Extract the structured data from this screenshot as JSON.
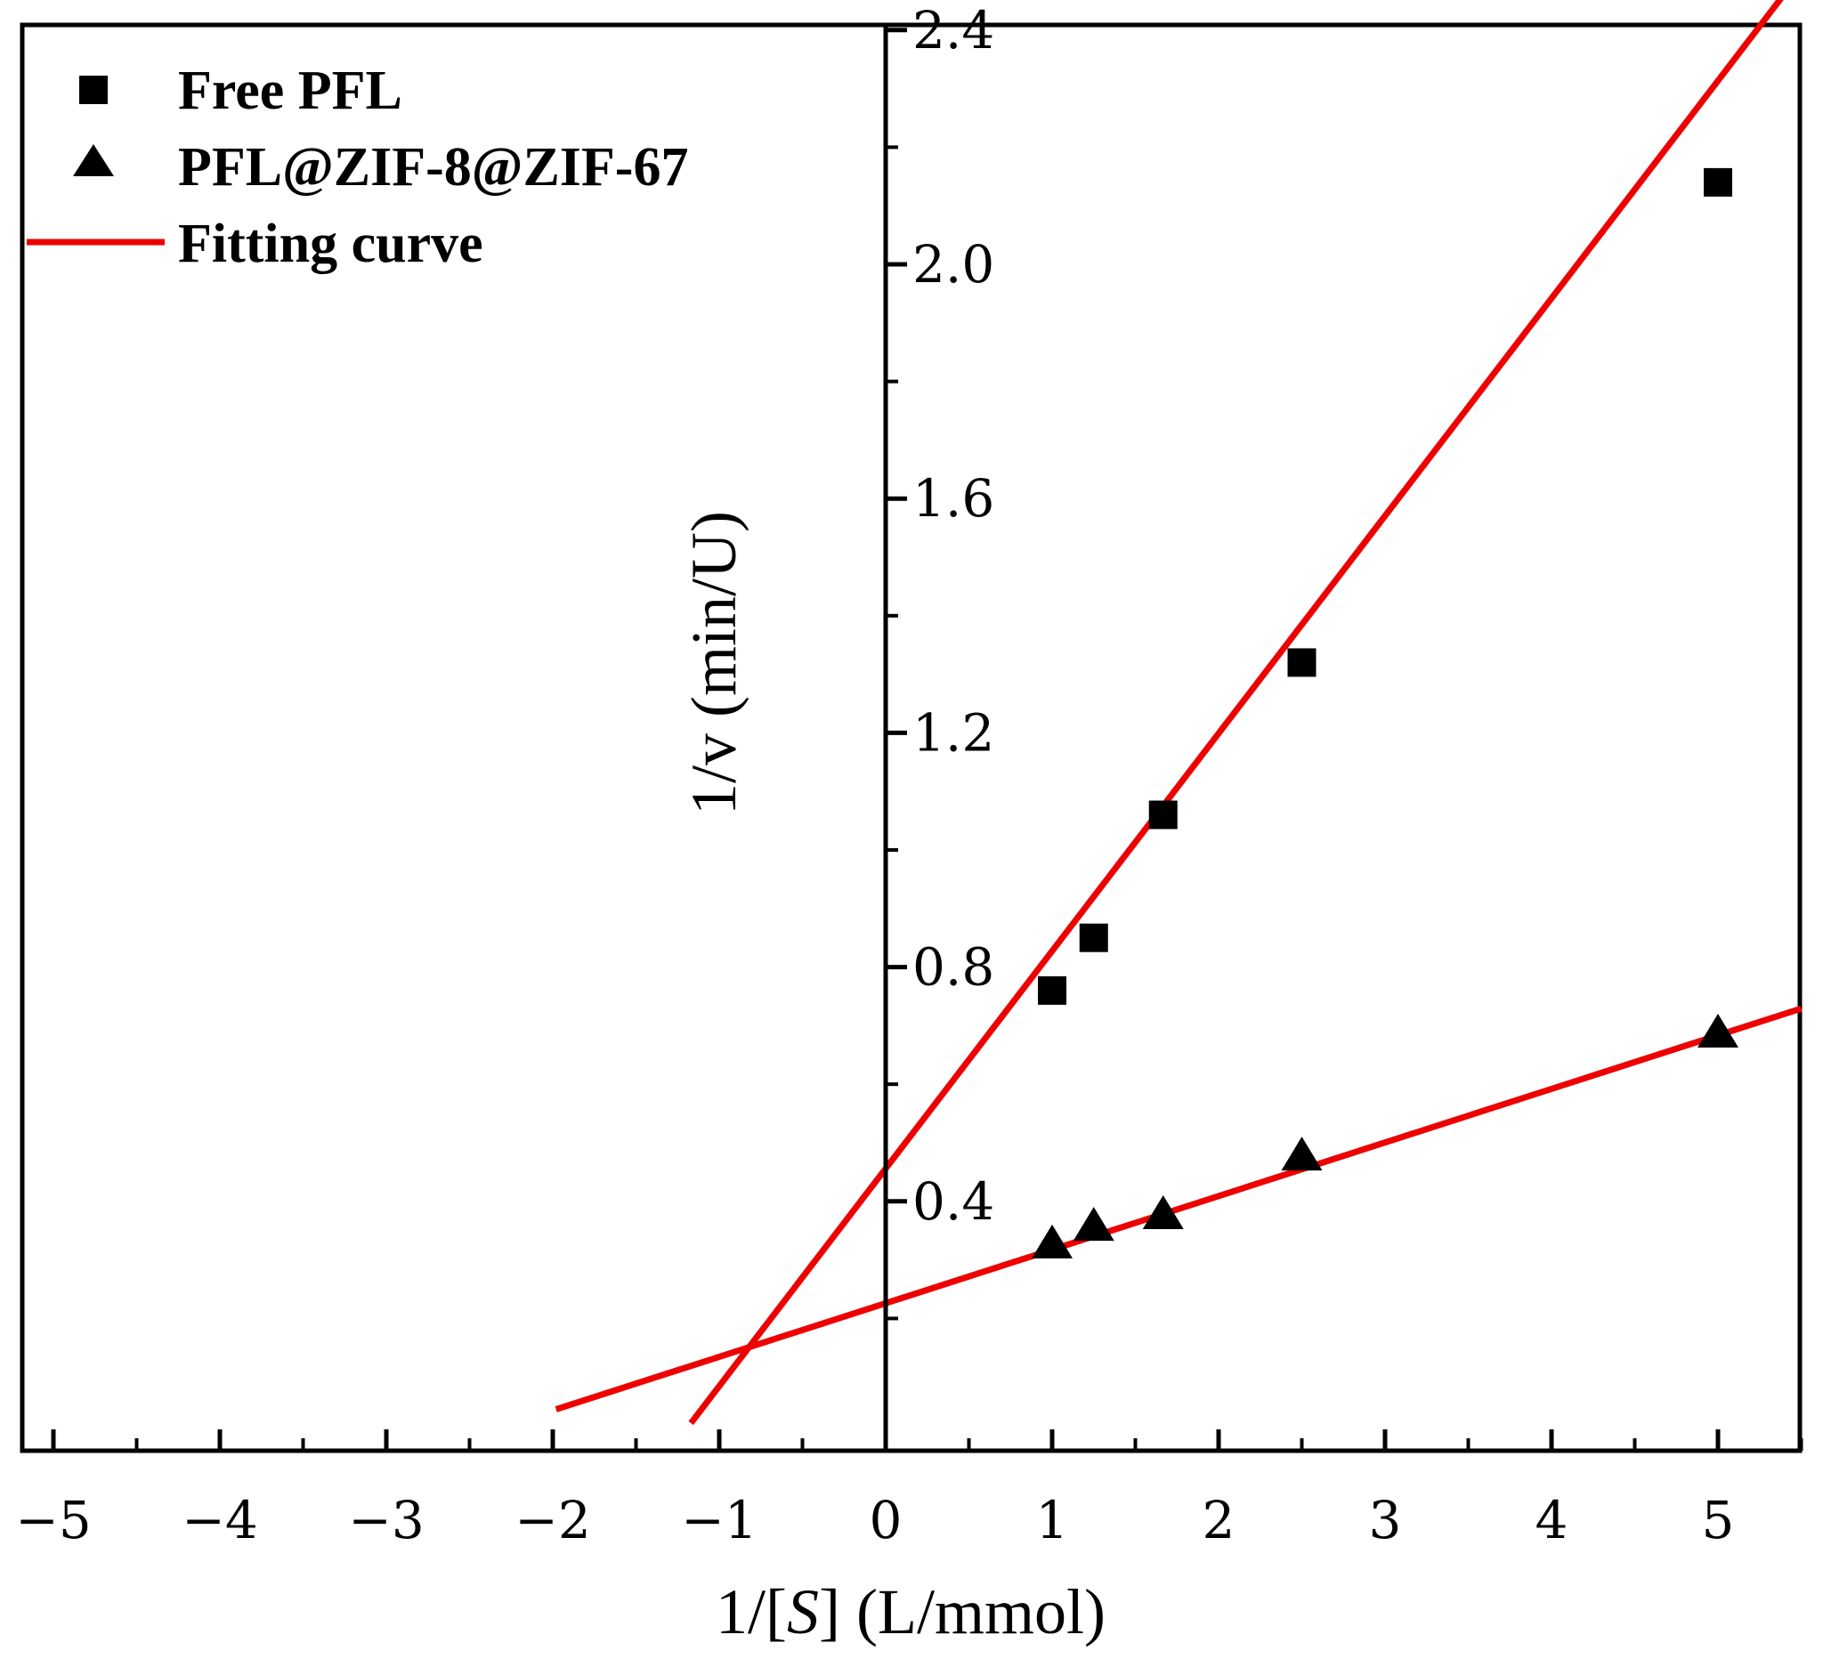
{
  "chart_data": {
    "type": "scatter",
    "title": "",
    "xlabel": {
      "prefix": "1/[",
      "italic": "S",
      "suffix": "] (L/mmol)"
    },
    "ylabel": "1/v (min/U)",
    "xlim": [
      -5.2,
      5.5
    ],
    "ylim": [
      0.05,
      2.5
    ],
    "x_ticks": [
      -5,
      -4,
      -3,
      -2,
      -1,
      0,
      1,
      2,
      3,
      4,
      5
    ],
    "x_tick_labels": [
      "−5",
      "−4",
      "−3",
      "−2",
      "−1",
      "0",
      "1",
      "2",
      "3",
      "4",
      "5"
    ],
    "y_ticks": [
      0.4,
      0.8,
      1.2,
      1.6,
      2.0,
      2.4
    ],
    "y_tick_labels": [
      "0.4",
      "0.8",
      "1.2",
      "1.6",
      "2.0",
      "2.4"
    ],
    "series": [
      {
        "name": "Free PFL",
        "marker": "square",
        "x": [
          1,
          1.25,
          1.667,
          2.5,
          5
        ],
        "y": [
          0.76,
          0.85,
          1.06,
          1.32,
          2.14
        ]
      },
      {
        "name": "PFL@ZIF-8@ZIF-67",
        "marker": "triangle",
        "x": [
          1,
          1.25,
          1.667,
          2.5,
          5
        ],
        "y": [
          0.33,
          0.36,
          0.38,
          0.48,
          0.69
        ]
      }
    ],
    "fits": [
      {
        "name": "Fitting curve",
        "for": "Free PFL",
        "slope": 0.3715,
        "intercept": 0.456,
        "x_range": [
          -1.17,
          5.5
        ]
      },
      {
        "name": "Fitting curve",
        "for": "PFL@ZIF-8@ZIF-67",
        "slope": 0.0915,
        "intercept": 0.226,
        "x_range": [
          -1.98,
          5.5
        ]
      }
    ],
    "legend": {
      "position": "top-left",
      "entries": [
        {
          "label": "Free PFL",
          "symbol": "square"
        },
        {
          "label": "PFL@ZIF-8@ZIF-67",
          "symbol": "triangle"
        },
        {
          "label": "Fitting curve",
          "symbol": "line"
        }
      ]
    },
    "colors": {
      "fit": "#ee0000",
      "marker": "#000000",
      "axis": "#000000"
    }
  }
}
